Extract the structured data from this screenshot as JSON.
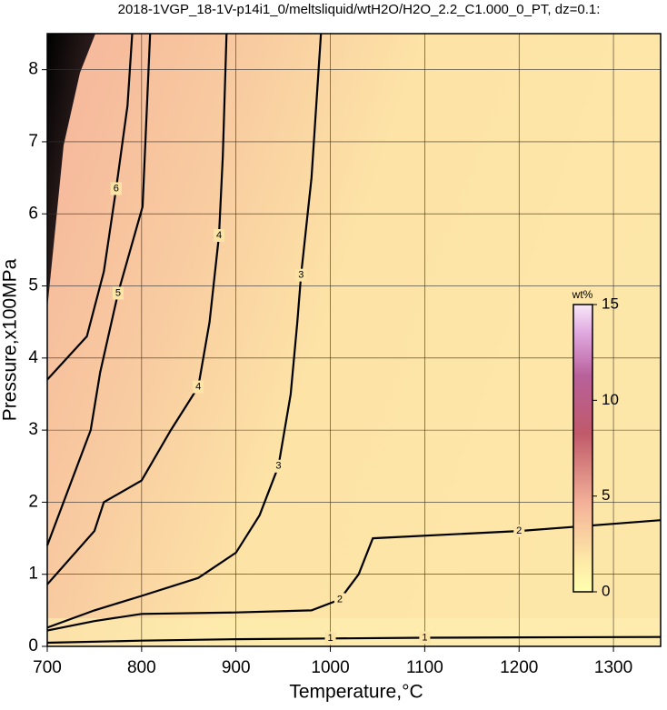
{
  "chart_data": {
    "type": "contour",
    "title": "2018-1VGP_18-1V-p14i1_0/meltsliquid/wtH2O/H2O_2.2_C1.000_0_PT, dz=0.1:",
    "x_label": "Temperature,°C",
    "y_label": "Pressure,x100MPa",
    "xlim": [
      700,
      1350
    ],
    "ylim": [
      0,
      8.5
    ],
    "xticks": [
      700,
      800,
      900,
      1000,
      1100,
      1200,
      1300
    ],
    "yticks": [
      0,
      1,
      2,
      3,
      4,
      5,
      6,
      7,
      8
    ],
    "grid": true,
    "line_color": "#000000",
    "contours": [
      {
        "level": 1,
        "x": [
          700,
          800,
          900,
          1000,
          1100,
          1200,
          1350
        ],
        "y": [
          0.05,
          0.08,
          0.1,
          0.11,
          0.12,
          0.125,
          0.13
        ]
      },
      {
        "level": 2,
        "x": [
          700,
          750,
          800,
          900,
          980,
          1010,
          1030,
          1045,
          1200,
          1300,
          1350
        ],
        "y": [
          0.22,
          0.35,
          0.45,
          0.47,
          0.5,
          0.65,
          1.0,
          1.5,
          1.6,
          1.7,
          1.75
        ]
      },
      {
        "level": 3,
        "x": [
          700,
          750,
          800,
          860,
          900,
          925,
          945,
          958,
          965,
          969,
          980,
          990
        ],
        "y": [
          0.26,
          0.5,
          0.7,
          0.95,
          1.3,
          1.82,
          2.5,
          3.5,
          4.5,
          5.15,
          6.5,
          8.5
        ]
      },
      {
        "level": 4,
        "x": [
          700,
          750,
          760,
          800,
          831,
          860,
          872,
          882,
          886,
          890
        ],
        "y": [
          0.86,
          1.6,
          2.0,
          2.3,
          3.0,
          3.6,
          4.5,
          5.7,
          6.8,
          8.5
        ]
      },
      {
        "level": 5,
        "x": [
          700,
          746,
          756,
          775,
          801,
          809
        ],
        "y": [
          1.4,
          3.0,
          3.8,
          4.9,
          6.1,
          8.5
        ]
      },
      {
        "level": 6,
        "x": [
          700,
          742,
          760,
          773,
          785,
          790
        ],
        "y": [
          3.7,
          4.3,
          5.2,
          6.35,
          7.5,
          8.5
        ]
      }
    ],
    "colorbar": {
      "label": "wt%",
      "lim": [
        0,
        15
      ],
      "ticks": [
        0,
        5,
        10,
        15
      ]
    }
  }
}
